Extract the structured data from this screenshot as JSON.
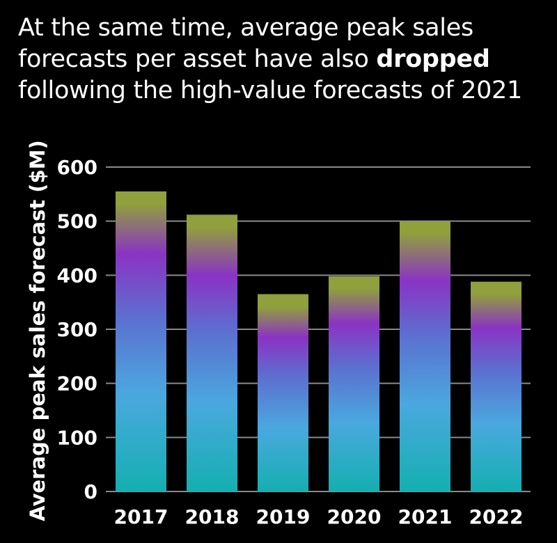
{
  "title": {
    "part1": "At the same time, average peak sales forecasts per asset have also ",
    "bold": "dropped",
    "part2": " following the high-value forecasts of 2021"
  },
  "chart_data": {
    "type": "bar",
    "categories": [
      "2017",
      "2018",
      "2019",
      "2020",
      "2021",
      "2022"
    ],
    "values": [
      555,
      512,
      365,
      398,
      500,
      388
    ],
    "title": "At the same time, average peak sales forecasts per asset have also dropped following the high-value forecasts of 2021",
    "xlabel": "",
    "ylabel": "Average peak sales forecast ($M)",
    "ylim": [
      0,
      600
    ],
    "yticks": [
      0,
      100,
      200,
      300,
      400,
      500,
      600
    ],
    "grid": true,
    "legend": "none",
    "colors": {
      "top": "#8FA03C",
      "upper": "#8A33C4",
      "middle": "#5C6FD0",
      "lower": "#4AA8DF",
      "bottom": "#14AFB0",
      "grid": "#8A8A8A"
    }
  }
}
